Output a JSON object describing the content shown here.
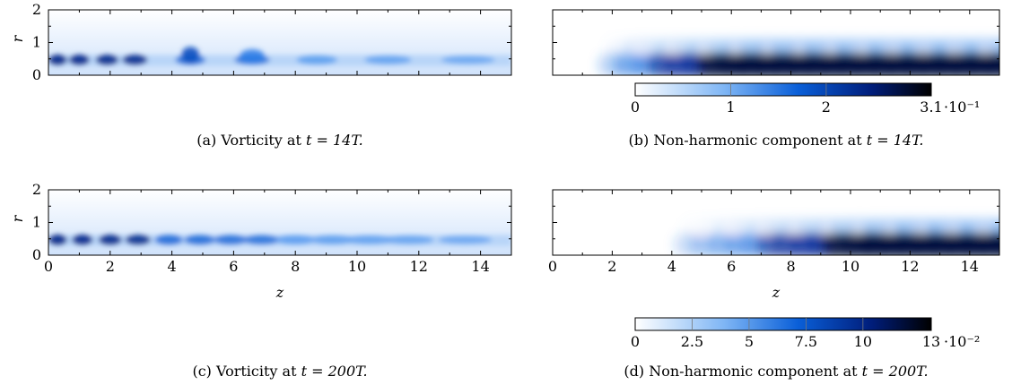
{
  "axes": {
    "z_ticks": [
      "0",
      "2",
      "4",
      "6",
      "8",
      "10",
      "12",
      "14"
    ],
    "r_ticks": [
      "0",
      "1",
      "2"
    ],
    "xlabel": "z",
    "ylabel": "r",
    "xlim": [
      0,
      15
    ],
    "ylim": [
      0,
      2
    ]
  },
  "colorbars": [
    {
      "ticks": [
        "0",
        "1",
        "2",
        "3.1"
      ],
      "values": [
        0,
        1,
        2,
        3.1
      ],
      "exponent": "·10⁻¹",
      "max": 3.1
    },
    {
      "ticks": [
        "0",
        "2.5",
        "5",
        "7.5",
        "10",
        "13"
      ],
      "values": [
        0,
        2.5,
        5,
        7.5,
        10,
        13
      ],
      "exponent": "·10⁻²",
      "max": 13
    }
  ],
  "captions": {
    "a": {
      "prefix": "(a) Vorticity at ",
      "time": "t = 14T."
    },
    "b": {
      "prefix": "(b) Non-harmonic component at ",
      "time": "t = 14T."
    },
    "c": {
      "prefix": "(c) Vorticity at ",
      "time": "t = 200T."
    },
    "d": {
      "prefix": "(d) Non-harmonic component at ",
      "time": "t = 200T."
    }
  },
  "colors": {
    "light": "#ffffff",
    "mid": "#1f72e0",
    "dark": "#000a33"
  },
  "chart_data": [
    {
      "type": "heatmap",
      "panel": "a",
      "quantity": "vorticity",
      "time": "14T",
      "xlabel": "z",
      "ylabel": "r",
      "xlim": [
        0,
        15
      ],
      "ylim": [
        0,
        2
      ],
      "blobs_z": [
        0.3,
        1.0,
        1.9,
        2.8,
        4.6,
        6.6,
        8.7,
        11.0,
        13.6
      ]
    },
    {
      "type": "heatmap",
      "panel": "b",
      "quantity": "non-harmonic component",
      "time": "14T",
      "xlim": [
        0,
        15
      ],
      "ylim": [
        0,
        2
      ],
      "clim": [
        0,
        0.31
      ]
    },
    {
      "type": "heatmap",
      "panel": "c",
      "quantity": "vorticity",
      "time": "200T",
      "xlabel": "z",
      "ylabel": "r",
      "xlim": [
        0,
        15
      ],
      "ylim": [
        0,
        2
      ],
      "blobs_z": [
        0.3,
        1.1,
        2.0,
        2.9,
        3.9,
        4.9,
        5.9,
        6.9,
        8.0,
        9.2,
        10.4,
        11.7,
        13.5
      ]
    },
    {
      "type": "heatmap",
      "panel": "d",
      "quantity": "non-harmonic component",
      "time": "200T",
      "xlabel": "z",
      "xlim": [
        0,
        15
      ],
      "ylim": [
        0,
        2
      ],
      "clim": [
        0,
        0.13
      ]
    }
  ]
}
